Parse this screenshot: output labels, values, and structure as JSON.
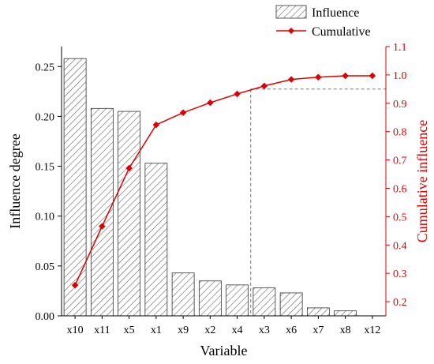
{
  "chart_data": {
    "type": "bar+line",
    "categories": [
      "x10",
      "x11",
      "x5",
      "x1",
      "x9",
      "x2",
      "x4",
      "x3",
      "x6",
      "x7",
      "x8",
      "x12"
    ],
    "series": [
      {
        "name": "Influence",
        "type": "bar",
        "axis": "left",
        "values": [
          0.258,
          0.208,
          0.205,
          0.153,
          0.043,
          0.035,
          0.031,
          0.028,
          0.023,
          0.008,
          0.005,
          0.0
        ],
        "color": "#000000",
        "pattern": "diagonal-hatch"
      },
      {
        "name": "Cumulative",
        "type": "line",
        "axis": "right",
        "values": [
          0.258,
          0.466,
          0.671,
          0.824,
          0.867,
          0.902,
          0.933,
          0.961,
          0.984,
          0.992,
          0.997,
          0.997
        ],
        "color": "#e00000",
        "marker": "diamond"
      }
    ],
    "xlabel": "Variable",
    "ylabel": "Influence degree",
    "y2label": "Cumulative influence",
    "ylim": [
      0.0,
      0.27
    ],
    "y2lim": [
      0.15,
      1.1
    ],
    "yticks": [
      "0.00",
      "0.05",
      "0.10",
      "0.15",
      "0.20",
      "0.25"
    ],
    "y2ticks": [
      "0.2",
      "0.3",
      "0.4",
      "0.5",
      "0.6",
      "0.7",
      "0.8",
      "0.9",
      "1.0",
      "1.1"
    ],
    "threshold": {
      "y2": 0.95,
      "x_between": [
        "x4",
        "x3"
      ],
      "style": "dashed"
    },
    "legend_position": "top-right",
    "grid": false
  }
}
